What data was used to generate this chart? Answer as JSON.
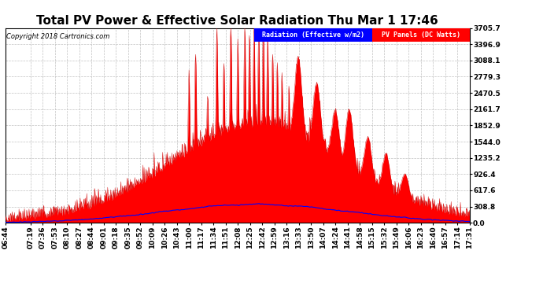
{
  "title": "Total PV Power & Effective Solar Radiation Thu Mar 1 17:46",
  "copyright": "Copyright 2018 Cartronics.com",
  "legend_blue": "Radiation (Effective w/m2)",
  "legend_red": "PV Panels (DC Watts)",
  "y_max": 3705.7,
  "y_ticks": [
    0.0,
    308.8,
    617.6,
    926.4,
    1235.2,
    1544.0,
    1852.9,
    2161.7,
    2470.5,
    2779.3,
    3088.1,
    3396.9,
    3705.7
  ],
  "background_color": "#FFFFFF",
  "plot_bg_color": "#FFFFFF",
  "grid_color": "#BBBBBB",
  "title_fontsize": 11,
  "tick_fontsize": 6.5,
  "x_tick_labels": [
    "06:44",
    "07:19",
    "07:36",
    "07:53",
    "08:10",
    "08:27",
    "08:44",
    "09:01",
    "09:18",
    "09:35",
    "09:52",
    "10:09",
    "10:26",
    "10:43",
    "11:00",
    "11:17",
    "11:34",
    "11:51",
    "12:08",
    "12:25",
    "12:42",
    "12:59",
    "13:16",
    "13:33",
    "13:50",
    "14:07",
    "14:24",
    "14:41",
    "14:58",
    "15:15",
    "15:32",
    "15:49",
    "16:06",
    "16:23",
    "16:40",
    "16:57",
    "17:14",
    "17:31"
  ]
}
